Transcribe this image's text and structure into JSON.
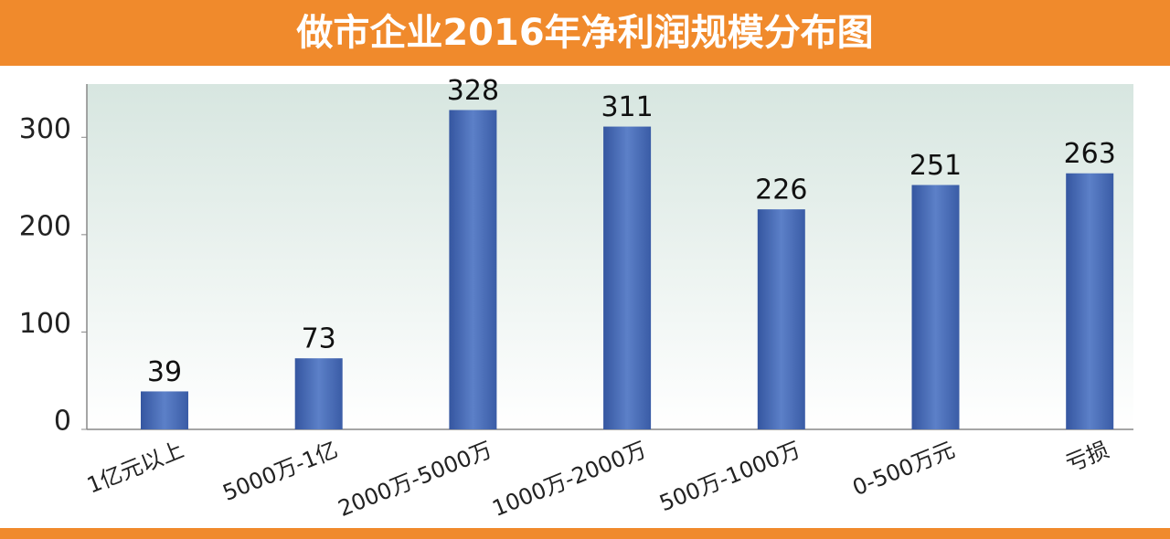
{
  "chart_data": {
    "type": "bar",
    "title": "做市企业2016年净利润规模分布图",
    "categories": [
      "1亿元以上",
      "5000万-1亿",
      "2000万-5000万",
      "1000万-2000万",
      "500万-1000万",
      "0-500万元",
      "亏损"
    ],
    "values": [
      39,
      73,
      328,
      311,
      226,
      251,
      263
    ],
    "color": "#4a6cb4",
    "ylim": [
      0,
      350
    ],
    "yticks": [
      0,
      100,
      200,
      300
    ],
    "grid": false
  }
}
